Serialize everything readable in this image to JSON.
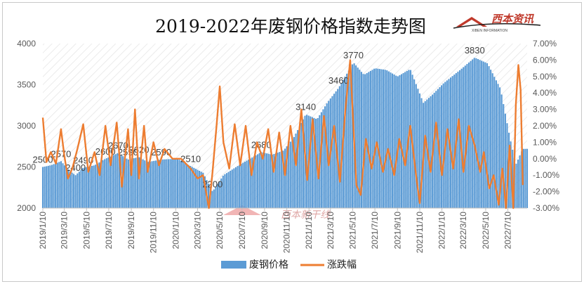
{
  "chart_data": {
    "type": "bar+line",
    "title": "2019-2022年废钢价格指数走势图",
    "logo_text": "西本资讯",
    "logo_subtext": "XIBEN INFORMATION",
    "watermark_text": "西本新干线",
    "series": [
      {
        "name": "废钢价格",
        "type": "bar",
        "axis": "left",
        "color": "#5b9bd5"
      },
      {
        "name": "涨跌幅",
        "type": "line",
        "axis": "right",
        "color": "#ed7d31"
      }
    ],
    "ylim_left": [
      2000,
      4000
    ],
    "yticks_left": [
      "2000",
      "2500",
      "3000",
      "3500",
      "4000"
    ],
    "ylim_right": [
      -0.03,
      0.07
    ],
    "yticks_right": [
      "-3.00%",
      "-2.00%",
      "-1.00%",
      "0.00%",
      "1.00%",
      "2.00%",
      "3.00%",
      "4.00%",
      "5.00%",
      "6.00%",
      "7.00%"
    ],
    "x_tick_labels": [
      "2019/1/10",
      "2019/3/10",
      "2019/5/10",
      "2019/7/10",
      "2019/9/10",
      "2019/11/10",
      "2020/1/10",
      "2020/3/10",
      "2020/5/10",
      "2020/7/10",
      "2020/9/10",
      "2020/11/10",
      "2021/1/10",
      "2021/3/10",
      "2021/5/10",
      "2021/7/10",
      "2021/9/10",
      "2021/11/10",
      "2022/1/10",
      "2022/3/10",
      "2022/5/10",
      "2022/7/10"
    ],
    "price_anchors": [
      [
        "2019-01-10",
        2500
      ],
      [
        "2019-02-01",
        2520
      ],
      [
        "2019-03-01",
        2570
      ],
      [
        "2019-03-25",
        2450
      ],
      [
        "2019-04-10",
        2400
      ],
      [
        "2019-05-01",
        2490
      ],
      [
        "2019-06-01",
        2520
      ],
      [
        "2019-07-01",
        2600
      ],
      [
        "2019-08-05",
        2670
      ],
      [
        "2019-09-01",
        2590
      ],
      [
        "2019-10-01",
        2620
      ],
      [
        "2019-10-25",
        2560
      ],
      [
        "2019-12-01",
        2590
      ],
      [
        "2020-01-15",
        2600
      ],
      [
        "2020-02-20",
        2510
      ],
      [
        "2020-03-25",
        2430
      ],
      [
        "2020-04-20",
        2200
      ],
      [
        "2020-05-20",
        2400
      ],
      [
        "2020-07-01",
        2520
      ],
      [
        "2020-08-01",
        2600
      ],
      [
        "2020-09-01",
        2680
      ],
      [
        "2020-10-01",
        2650
      ],
      [
        "2020-11-01",
        2700
      ],
      [
        "2020-12-01",
        2870
      ],
      [
        "2021-01-01",
        3140
      ],
      [
        "2021-02-01",
        3080
      ],
      [
        "2021-03-01",
        3280
      ],
      [
        "2021-04-01",
        3460
      ],
      [
        "2021-05-12",
        3770
      ],
      [
        "2021-06-10",
        3620
      ],
      [
        "2021-07-10",
        3700
      ],
      [
        "2021-08-10",
        3680
      ],
      [
        "2021-09-10",
        3600
      ],
      [
        "2021-10-15",
        3690
      ],
      [
        "2021-11-20",
        3280
      ],
      [
        "2021-12-15",
        3380
      ],
      [
        "2022-01-15",
        3520
      ],
      [
        "2022-03-01",
        3680
      ],
      [
        "2022-04-10",
        3830
      ],
      [
        "2022-05-15",
        3760
      ],
      [
        "2022-06-20",
        3450
      ],
      [
        "2022-07-15",
        2870
      ],
      [
        "2022-08-01",
        2530
      ],
      [
        "2022-08-20",
        2720
      ]
    ],
    "change_points": [
      [
        "2019-01-10",
        0.025
      ],
      [
        "2019-01-20",
        -0.002
      ],
      [
        "2019-02-01",
        0.004
      ],
      [
        "2019-02-15",
        -0.003
      ],
      [
        "2019-03-01",
        0.018
      ],
      [
        "2019-03-10",
        0.002
      ],
      [
        "2019-03-20",
        -0.012
      ],
      [
        "2019-04-01",
        -0.006
      ],
      [
        "2019-04-15",
        0.006
      ],
      [
        "2019-05-01",
        0.021
      ],
      [
        "2019-05-15",
        -0.008
      ],
      [
        "2019-06-01",
        0.004
      ],
      [
        "2019-06-15",
        -0.01
      ],
      [
        "2019-07-01",
        0.02
      ],
      [
        "2019-07-15",
        -0.004
      ],
      [
        "2019-08-01",
        0.022
      ],
      [
        "2019-08-15",
        -0.017
      ],
      [
        "2019-09-01",
        0.018
      ],
      [
        "2019-09-10",
        -0.01
      ],
      [
        "2019-09-20",
        0.03
      ],
      [
        "2019-10-01",
        -0.012
      ],
      [
        "2019-10-15",
        0.02
      ],
      [
        "2019-10-25",
        -0.008
      ],
      [
        "2019-11-10",
        0.01
      ],
      [
        "2019-11-25",
        -0.004
      ],
      [
        "2019-12-10",
        0.006
      ],
      [
        "2020-01-01",
        0.0
      ],
      [
        "2020-01-25",
        0.0
      ],
      [
        "2020-02-20",
        -0.006
      ],
      [
        "2020-03-10",
        -0.012
      ],
      [
        "2020-03-25",
        -0.01
      ],
      [
        "2020-04-10",
        -0.03
      ],
      [
        "2020-04-20",
        -0.008
      ],
      [
        "2020-05-01",
        0.02
      ],
      [
        "2020-05-10",
        0.044
      ],
      [
        "2020-05-20",
        0.01
      ],
      [
        "2020-06-05",
        -0.006
      ],
      [
        "2020-06-20",
        0.021
      ],
      [
        "2020-07-05",
        -0.004
      ],
      [
        "2020-07-20",
        0.02
      ],
      [
        "2020-08-05",
        -0.01
      ],
      [
        "2020-08-20",
        0.01
      ],
      [
        "2020-09-05",
        0.0
      ],
      [
        "2020-09-20",
        0.018
      ],
      [
        "2020-10-05",
        -0.008
      ],
      [
        "2020-10-20",
        0.016
      ],
      [
        "2020-11-05",
        -0.01
      ],
      [
        "2020-11-20",
        0.02
      ],
      [
        "2020-12-05",
        -0.004
      ],
      [
        "2020-12-20",
        0.03
      ],
      [
        "2021-01-05",
        -0.013
      ],
      [
        "2021-01-20",
        0.024
      ],
      [
        "2021-02-05",
        -0.012
      ],
      [
        "2021-02-20",
        0.026
      ],
      [
        "2021-03-05",
        -0.004
      ],
      [
        "2021-03-20",
        0.02
      ],
      [
        "2021-04-05",
        -0.014
      ],
      [
        "2021-04-20",
        0.03
      ],
      [
        "2021-05-03",
        0.06
      ],
      [
        "2021-05-10",
        0.028
      ],
      [
        "2021-05-20",
        -0.016
      ],
      [
        "2021-06-01",
        -0.022
      ],
      [
        "2021-06-15",
        0.012
      ],
      [
        "2021-07-01",
        -0.006
      ],
      [
        "2021-07-15",
        0.01
      ],
      [
        "2021-08-01",
        -0.008
      ],
      [
        "2021-08-15",
        0.006
      ],
      [
        "2021-09-01",
        -0.01
      ],
      [
        "2021-09-15",
        0.012
      ],
      [
        "2021-10-01",
        -0.004
      ],
      [
        "2021-10-15",
        0.02
      ],
      [
        "2021-11-01",
        -0.012
      ],
      [
        "2021-11-10",
        -0.027
      ],
      [
        "2021-11-25",
        0.014
      ],
      [
        "2021-12-10",
        -0.008
      ],
      [
        "2021-12-25",
        0.022
      ],
      [
        "2022-01-10",
        -0.01
      ],
      [
        "2022-01-25",
        0.018
      ],
      [
        "2022-02-10",
        -0.006
      ],
      [
        "2022-02-25",
        0.024
      ],
      [
        "2022-03-10",
        -0.008
      ],
      [
        "2022-03-25",
        0.02
      ],
      [
        "2022-04-10",
        0.008
      ],
      [
        "2022-04-25",
        -0.008
      ],
      [
        "2022-05-05",
        0.004
      ],
      [
        "2022-05-20",
        -0.018
      ],
      [
        "2022-06-01",
        -0.01
      ],
      [
        "2022-06-15",
        -0.028
      ],
      [
        "2022-06-25",
        -0.006
      ],
      [
        "2022-07-05",
        -0.03
      ],
      [
        "2022-07-15",
        0.008
      ],
      [
        "2022-07-25",
        -0.03
      ],
      [
        "2022-08-01",
        0.033
      ],
      [
        "2022-08-08",
        0.057
      ],
      [
        "2022-08-14",
        0.042
      ],
      [
        "2022-08-20",
        -0.016
      ]
    ],
    "annotations": [
      {
        "date": "2019-01-10",
        "value": 2500,
        "text": "2500"
      },
      {
        "date": "2019-03-01",
        "value": 2570,
        "text": "2570"
      },
      {
        "date": "2019-04-10",
        "value": 2400,
        "text": "2400"
      },
      {
        "date": "2019-05-01",
        "value": 2490,
        "text": "2490"
      },
      {
        "date": "2019-07-01",
        "value": 2600,
        "text": "2600"
      },
      {
        "date": "2019-08-05",
        "value": 2670,
        "text": "2670"
      },
      {
        "date": "2019-09-01",
        "value": 2590,
        "text": "2590"
      },
      {
        "date": "2019-10-01",
        "value": 2620,
        "text": "2620"
      },
      {
        "date": "2019-12-01",
        "value": 2590,
        "text": "2590"
      },
      {
        "date": "2020-02-20",
        "value": 2510,
        "text": "2510"
      },
      {
        "date": "2020-04-20",
        "value": 2200,
        "text": "2200"
      },
      {
        "date": "2020-09-01",
        "value": 2680,
        "text": "2680"
      },
      {
        "date": "2021-01-01",
        "value": 3140,
        "text": "3140"
      },
      {
        "date": "2021-04-01",
        "value": 3460,
        "text": "3460"
      },
      {
        "date": "2021-05-12",
        "value": 3770,
        "text": "3770"
      },
      {
        "date": "2022-04-10",
        "value": 3830,
        "text": "3830"
      }
    ],
    "legend_position": "bottom-center",
    "grid": false
  }
}
